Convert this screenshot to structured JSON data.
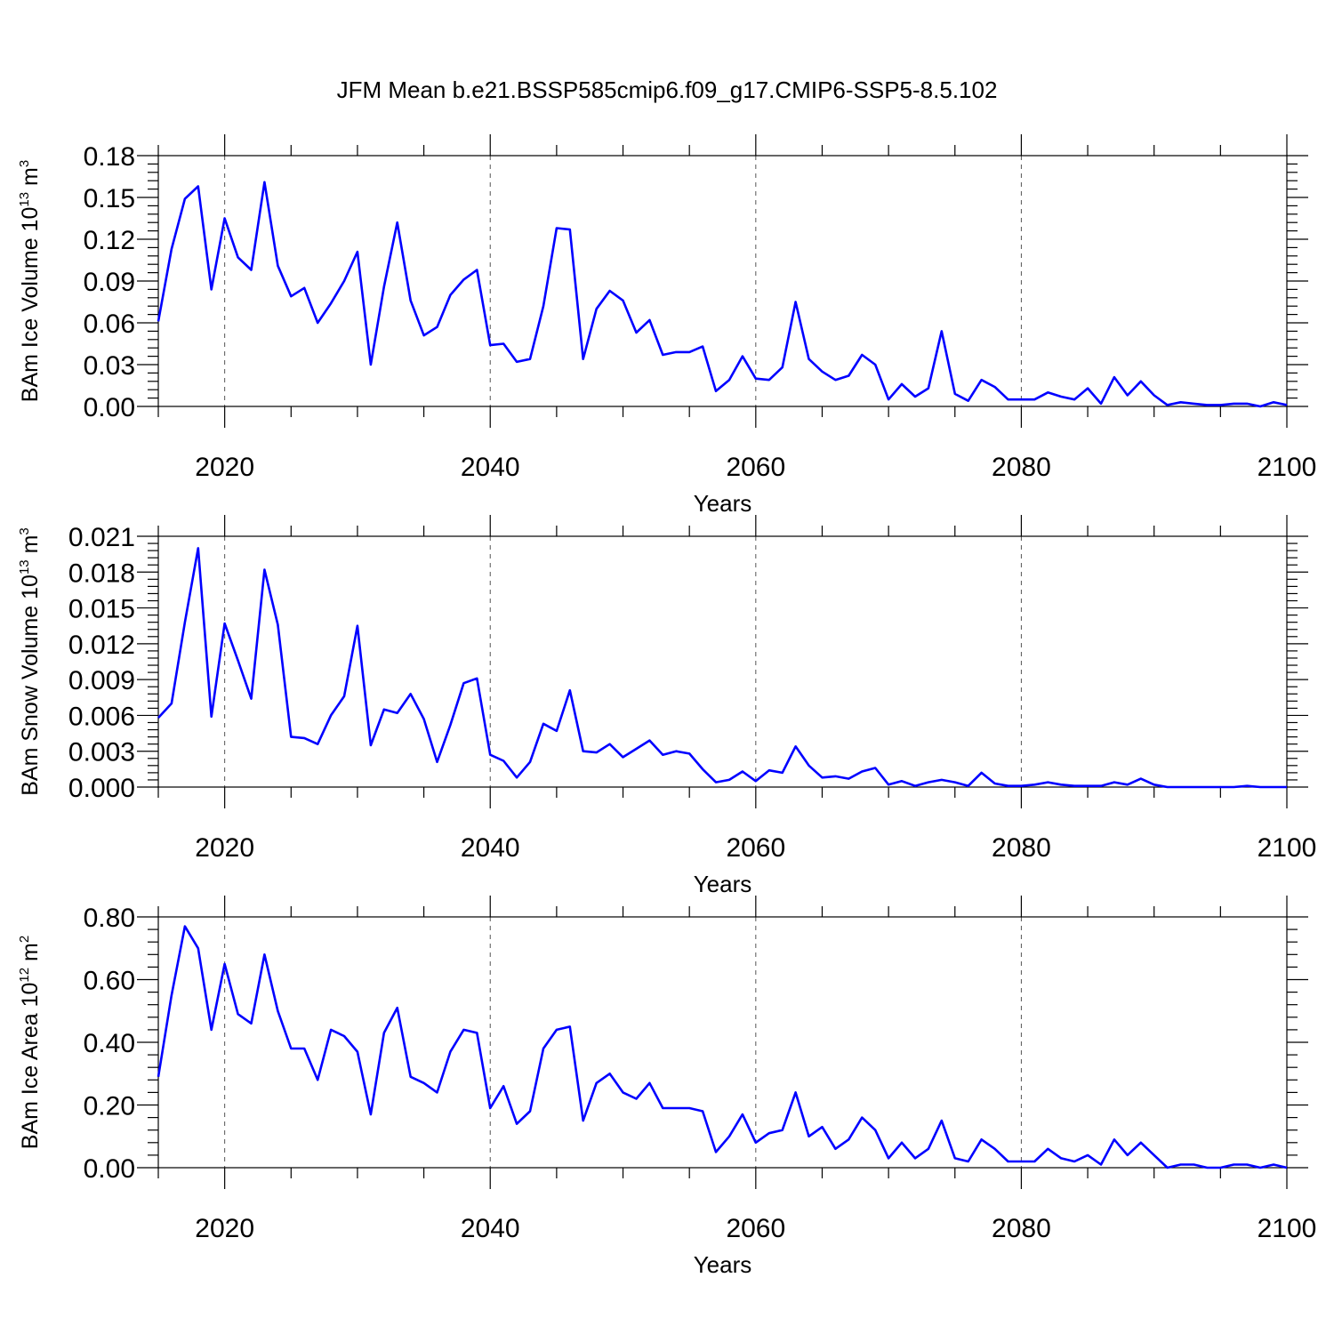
{
  "title": "JFM Mean b.e21.BSSP585cmip6.f09_g17.CMIP6-SSP5-8.5.102",
  "colors": {
    "line": "#0000ff",
    "frame": "#000000",
    "grid": "#555555"
  },
  "chart_data": [
    {
      "type": "line",
      "xlabel": "Years",
      "ylabel": {
        "main": "BAm Ice Volume 10",
        "exp1": "13",
        "unit": " m",
        "exp2": "3"
      },
      "xlim": [
        2015,
        2100
      ],
      "ylim": [
        0,
        0.18
      ],
      "xticks": [
        2020,
        2040,
        2060,
        2080,
        2100
      ],
      "xtick_labels": [
        "2020",
        "2040",
        "2060",
        "2080",
        "2100"
      ],
      "yticks": [
        0,
        0.03,
        0.06,
        0.09,
        0.12,
        0.15,
        0.18
      ],
      "ytick_labels": [
        "0.00",
        "0.03",
        "0.06",
        "0.09",
        "0.12",
        "0.15",
        "0.18"
      ],
      "grid": "x-dashed",
      "x_start": 2015,
      "values": [
        0.061,
        0.113,
        0.149,
        0.158,
        0.084,
        0.135,
        0.107,
        0.098,
        0.161,
        0.101,
        0.079,
        0.085,
        0.06,
        0.074,
        0.09,
        0.111,
        0.03,
        0.086,
        0.132,
        0.076,
        0.051,
        0.057,
        0.08,
        0.091,
        0.098,
        0.044,
        0.045,
        0.032,
        0.034,
        0.072,
        0.128,
        0.127,
        0.034,
        0.07,
        0.083,
        0.076,
        0.053,
        0.062,
        0.037,
        0.039,
        0.039,
        0.043,
        0.011,
        0.019,
        0.036,
        0.02,
        0.019,
        0.028,
        0.075,
        0.034,
        0.025,
        0.019,
        0.022,
        0.037,
        0.03,
        0.005,
        0.016,
        0.007,
        0.013,
        0.054,
        0.009,
        0.004,
        0.019,
        0.014,
        0.005,
        0.005,
        0.005,
        0.01,
        0.007,
        0.005,
        0.013,
        0.002,
        0.021,
        0.008,
        0.018,
        0.008,
        0.001,
        0.003,
        0.002,
        0.001,
        0.001,
        0.002,
        0.002,
        0.0,
        0.003,
        0.001
      ]
    },
    {
      "type": "line",
      "xlabel": "Years",
      "ylabel": {
        "main": "BAm Snow Volume 10",
        "exp1": "13",
        "unit": " m",
        "exp2": "3"
      },
      "xlim": [
        2015,
        2100
      ],
      "ylim": [
        0,
        0.021
      ],
      "xticks": [
        2020,
        2040,
        2060,
        2080,
        2100
      ],
      "xtick_labels": [
        "2020",
        "2040",
        "2060",
        "2080",
        "2100"
      ],
      "yticks": [
        0,
        0.003,
        0.006,
        0.009,
        0.012,
        0.015,
        0.018,
        0.021
      ],
      "ytick_labels": [
        "0.000",
        "0.003",
        "0.006",
        "0.009",
        "0.012",
        "0.015",
        "0.018",
        "0.021"
      ],
      "grid": "x-dashed",
      "x_start": 2015,
      "values": [
        0.0058,
        0.007,
        0.0138,
        0.02,
        0.0059,
        0.0137,
        0.0106,
        0.0074,
        0.0182,
        0.0136,
        0.0042,
        0.0041,
        0.0036,
        0.006,
        0.0076,
        0.0135,
        0.0035,
        0.0065,
        0.0062,
        0.0078,
        0.0057,
        0.0021,
        0.0052,
        0.0087,
        0.0091,
        0.0027,
        0.0022,
        0.0008,
        0.0021,
        0.0053,
        0.0047,
        0.0081,
        0.003,
        0.0029,
        0.0036,
        0.0025,
        0.0032,
        0.0039,
        0.0027,
        0.003,
        0.0028,
        0.0015,
        0.0004,
        0.0006,
        0.0013,
        0.0005,
        0.0014,
        0.0012,
        0.0034,
        0.0018,
        0.0008,
        0.0009,
        0.0007,
        0.0013,
        0.0016,
        0.0002,
        0.0005,
        0.0001,
        0.0004,
        0.0006,
        0.0004,
        0.0001,
        0.0012,
        0.0003,
        0.0001,
        0.0001,
        0.0002,
        0.0004,
        0.0002,
        0.0001,
        0.0001,
        0.0001,
        0.0004,
        0.0002,
        0.0007,
        0.0002,
        0.0,
        0.0,
        0.0,
        0.0,
        0.0,
        0.0,
        0.0001,
        0.0,
        0.0,
        0.0
      ]
    },
    {
      "type": "line",
      "xlabel": "Years",
      "ylabel": {
        "main": "BAm Ice Area 10",
        "exp1": "12",
        "unit": " m",
        "exp2": "2"
      },
      "xlim": [
        2015,
        2100
      ],
      "ylim": [
        0,
        0.8
      ],
      "xticks": [
        2020,
        2040,
        2060,
        2080,
        2100
      ],
      "xtick_labels": [
        "2020",
        "2040",
        "2060",
        "2080",
        "2100"
      ],
      "yticks": [
        0,
        0.2,
        0.4,
        0.6,
        0.8
      ],
      "ytick_labels": [
        "0.00",
        "0.20",
        "0.40",
        "0.60",
        "0.80"
      ],
      "grid": "x-dashed",
      "x_start": 2015,
      "values": [
        0.29,
        0.55,
        0.77,
        0.7,
        0.44,
        0.65,
        0.49,
        0.46,
        0.68,
        0.5,
        0.38,
        0.38,
        0.28,
        0.44,
        0.42,
        0.37,
        0.17,
        0.43,
        0.51,
        0.29,
        0.27,
        0.24,
        0.37,
        0.44,
        0.43,
        0.19,
        0.26,
        0.14,
        0.18,
        0.38,
        0.44,
        0.45,
        0.15,
        0.27,
        0.3,
        0.24,
        0.22,
        0.27,
        0.19,
        0.19,
        0.19,
        0.18,
        0.05,
        0.1,
        0.17,
        0.08,
        0.11,
        0.12,
        0.24,
        0.1,
        0.13,
        0.06,
        0.09,
        0.16,
        0.12,
        0.03,
        0.08,
        0.03,
        0.06,
        0.15,
        0.03,
        0.02,
        0.09,
        0.06,
        0.02,
        0.02,
        0.02,
        0.06,
        0.03,
        0.02,
        0.04,
        0.01,
        0.09,
        0.04,
        0.08,
        0.04,
        0.0,
        0.01,
        0.01,
        0.0,
        0.0,
        0.01,
        0.01,
        0.0,
        0.01,
        0.0
      ]
    }
  ]
}
